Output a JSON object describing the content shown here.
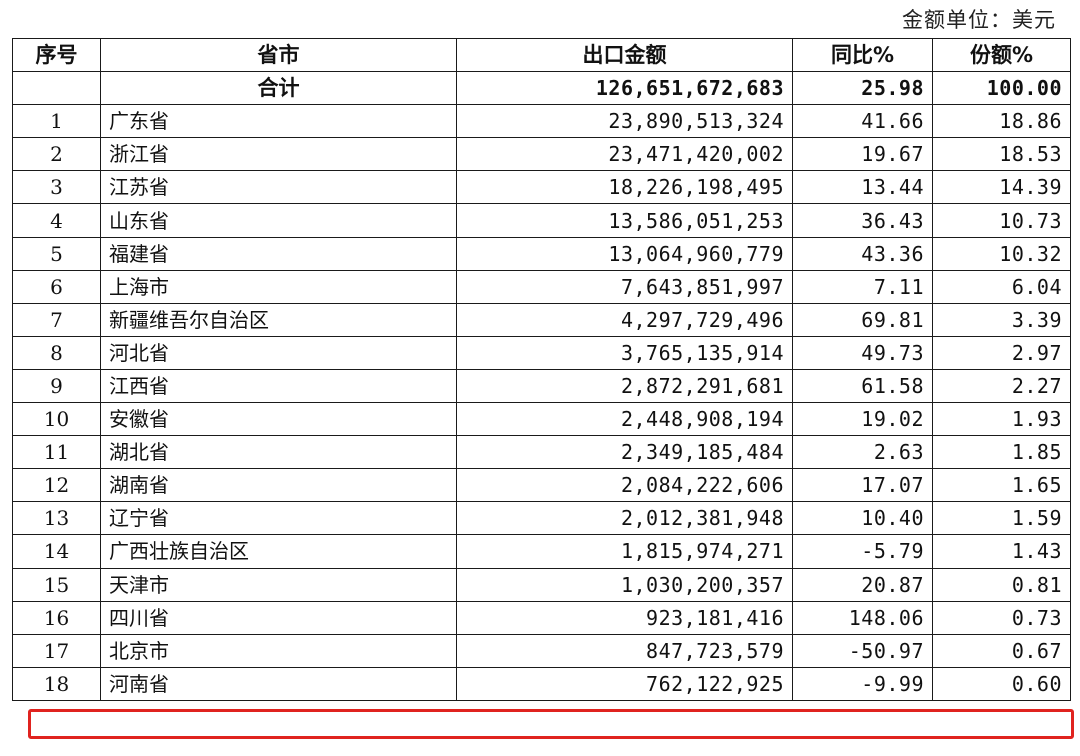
{
  "unit_note": "金额单位：美元",
  "headers": [
    "序号",
    "省市",
    "出口金额",
    "同比%",
    "份额%"
  ],
  "total": {
    "index": "",
    "name": "合计",
    "amount": "126,651,672,683",
    "yoy": "25.98",
    "share": "100.00"
  },
  "rows": [
    {
      "index": "1",
      "name": "广东省",
      "amount": "23,890,513,324",
      "yoy": "41.66",
      "share": "18.86"
    },
    {
      "index": "2",
      "name": "浙江省",
      "amount": "23,471,420,002",
      "yoy": "19.67",
      "share": "18.53"
    },
    {
      "index": "3",
      "name": "江苏省",
      "amount": "18,226,198,495",
      "yoy": "13.44",
      "share": "14.39"
    },
    {
      "index": "4",
      "name": "山东省",
      "amount": "13,586,051,253",
      "yoy": "36.43",
      "share": "10.73"
    },
    {
      "index": "5",
      "name": "福建省",
      "amount": "13,064,960,779",
      "yoy": "43.36",
      "share": "10.32"
    },
    {
      "index": "6",
      "name": "上海市",
      "amount": "7,643,851,997",
      "yoy": "7.11",
      "share": "6.04"
    },
    {
      "index": "7",
      "name": "新疆维吾尔自治区",
      "amount": "4,297,729,496",
      "yoy": "69.81",
      "share": "3.39"
    },
    {
      "index": "8",
      "name": "河北省",
      "amount": "3,765,135,914",
      "yoy": "49.73",
      "share": "2.97"
    },
    {
      "index": "9",
      "name": "江西省",
      "amount": "2,872,291,681",
      "yoy": "61.58",
      "share": "2.27"
    },
    {
      "index": "10",
      "name": "安徽省",
      "amount": "2,448,908,194",
      "yoy": "19.02",
      "share": "1.93"
    },
    {
      "index": "11",
      "name": "湖北省",
      "amount": "2,349,185,484",
      "yoy": "2.63",
      "share": "1.85"
    },
    {
      "index": "12",
      "name": "湖南省",
      "amount": "2,084,222,606",
      "yoy": "17.07",
      "share": "1.65"
    },
    {
      "index": "13",
      "name": "辽宁省",
      "amount": "2,012,381,948",
      "yoy": "10.40",
      "share": "1.59"
    },
    {
      "index": "14",
      "name": "广西壮族自治区",
      "amount": "1,815,974,271",
      "yoy": "-5.79",
      "share": "1.43"
    },
    {
      "index": "15",
      "name": "天津市",
      "amount": "1,030,200,357",
      "yoy": "20.87",
      "share": "0.81"
    },
    {
      "index": "16",
      "name": "四川省",
      "amount": "923,181,416",
      "yoy": "148.06",
      "share": "0.73"
    },
    {
      "index": "17",
      "name": "北京市",
      "amount": "847,723,579",
      "yoy": "-50.97",
      "share": "0.67"
    },
    {
      "index": "18",
      "name": "河南省",
      "amount": "762,122,925",
      "yoy": "-9.99",
      "share": "0.60"
    }
  ],
  "highlight": {
    "row_index": "18",
    "color": "#e0231f"
  }
}
